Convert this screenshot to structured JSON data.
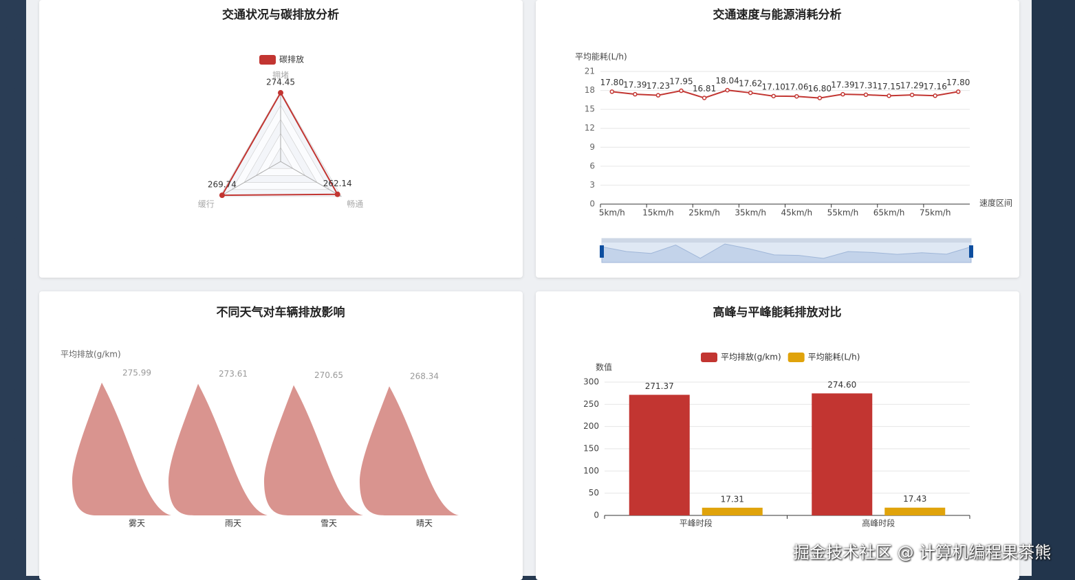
{
  "chart_data": [
    {
      "type": "radar",
      "title": "交通状况与碳排放分析",
      "categories": [
        "拥堵",
        "畅通",
        "缓行"
      ],
      "series": [
        {
          "name": "碳排放",
          "color": "#c23531",
          "values": [
            274.45,
            262.14,
            269.74
          ]
        }
      ],
      "rlim": [
        0,
        280
      ]
    },
    {
      "type": "line",
      "title": "交通速度与能源消耗分析",
      "y_name": "平均能耗(L/h)",
      "x_name": "速度区间",
      "categories": [
        "5km/h",
        null,
        "15km/h",
        null,
        "25km/h",
        null,
        "35km/h",
        null,
        "45km/h",
        null,
        "55km/h",
        null,
        "65km/h",
        null,
        "75km/h",
        null
      ],
      "values": [
        17.8,
        17.39,
        17.23,
        17.95,
        16.81,
        18.04,
        17.62,
        17.1,
        17.06,
        16.8,
        17.39,
        17.31,
        17.15,
        17.29,
        17.16,
        17.8
      ],
      "value_labels": [
        "17.80",
        "17.39",
        "17.23",
        "17.95",
        "16.81",
        "18.04",
        "17.62",
        "17.10",
        "17.06",
        "16.80",
        "17.39",
        "17.31",
        "17.15",
        "17.29",
        "17.16",
        "17.80"
      ],
      "color": "#c23531",
      "ylim": [
        0,
        21
      ],
      "yticks": [
        0,
        3,
        6,
        9,
        12,
        15,
        18,
        21
      ],
      "grid": true,
      "data_zoom": true
    },
    {
      "type": "pictorialBar",
      "title": "不同天气对车辆排放影响",
      "y_name": "平均排放(g/km)",
      "categories": [
        "雾天",
        "雨天",
        "雪天",
        "晴天"
      ],
      "values": [
        275.99,
        273.61,
        270.65,
        268.34
      ],
      "color": "#d4857f",
      "ylim": [
        0,
        300
      ]
    },
    {
      "type": "bar",
      "title": "高峰与平峰能耗排放对比",
      "y_name": "数值",
      "categories": [
        "平峰时段",
        "高峰时段"
      ],
      "series": [
        {
          "name": "平均排放(g/km)",
          "color": "#c23531",
          "values": [
            271.37,
            274.6
          ],
          "value_labels": [
            "271.37",
            "274.60"
          ]
        },
        {
          "name": "平均能耗(L/h)",
          "color": "#e0a30b",
          "values": [
            17.31,
            17.43
          ]
        }
      ],
      "ylim": [
        0,
        300
      ],
      "yticks": [
        0,
        50,
        100,
        150,
        200,
        250,
        300
      ],
      "grid": true,
      "legend": "top"
    }
  ],
  "watermark": "掘金技术社区 @ 计算机编程果茶熊"
}
